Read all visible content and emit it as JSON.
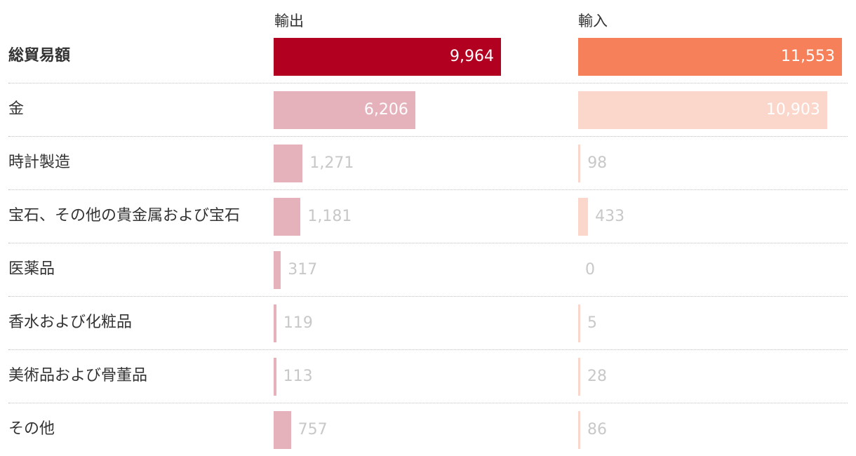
{
  "header": {
    "export_label": "輸出",
    "import_label": "輸入"
  },
  "colors": {
    "export_total": "#b20020",
    "export_item": "#e5b2bc",
    "import_total": "#f5805a",
    "import_item": "#fbd6cb",
    "label_inside": "#ffffff",
    "label_outside": "#c8c8c8"
  },
  "chart_data": {
    "type": "bar",
    "orientation": "horizontal",
    "categories": [
      "総貿易額",
      "金",
      "時計製造",
      "宝石、その他の貴金属および宝石",
      "医薬品",
      "香水および化粧品",
      "美術品および骨董品",
      "その他"
    ],
    "series": [
      {
        "name": "輸出",
        "values": [
          9964,
          6206,
          1271,
          1181,
          317,
          119,
          113,
          757
        ],
        "labels": [
          "9,964",
          "6,206",
          "1,271",
          "1,181",
          "317",
          "119",
          "113",
          "757"
        ]
      },
      {
        "name": "輸入",
        "values": [
          11553,
          10903,
          98,
          433,
          0,
          5,
          28,
          86
        ],
        "labels": [
          "11,553",
          "10,903",
          "98",
          "433",
          "0",
          "5",
          "28",
          "86"
        ]
      }
    ],
    "xlim": [
      0,
      11553
    ]
  }
}
